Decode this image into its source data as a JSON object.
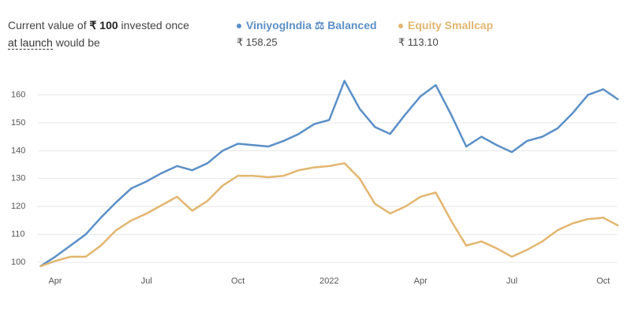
{
  "header": {
    "intro": "Current value of",
    "amount": "₹ 100",
    "rest": "invested once",
    "link": "at launch",
    "tail": "would be"
  },
  "chart_data": {
    "type": "line",
    "categories": [
      null,
      "Apr",
      null,
      null,
      null,
      null,
      null,
      "Jul",
      null,
      null,
      null,
      null,
      null,
      "Oct",
      null,
      null,
      null,
      null,
      null,
      "2022",
      null,
      null,
      null,
      null,
      null,
      "Apr",
      null,
      null,
      null,
      null,
      null,
      "Jul",
      null,
      null,
      null,
      null,
      null,
      "Oct",
      null
    ],
    "series": [
      {
        "name": "ViniyogIndia ⚖ Balanced",
        "color": "#5b8fc7",
        "values": [
          98.5,
          102,
          106,
          110,
          116,
          121.5,
          126.5,
          129,
          132,
          134.5,
          133,
          135.5,
          140,
          142.5,
          142,
          141.5,
          143.5,
          146,
          149.5,
          151,
          165,
          155,
          148.5,
          146,
          153,
          159.5,
          163.5,
          153,
          141.5,
          145,
          142,
          139.5,
          143.5,
          145,
          148,
          153.5,
          160,
          162,
          158.25
        ],
        "value_labels": [
          null,
          null,
          null,
          null,
          null,
          null,
          null,
          null,
          null,
          null,
          null,
          null,
          null,
          null,
          null,
          null,
          null,
          null,
          null,
          null,
          null,
          null,
          null,
          null,
          null,
          null,
          null,
          null,
          null,
          null,
          null,
          null,
          null,
          null,
          null,
          null,
          null,
          null,
          "₹ 158.25"
        ]
      },
      {
        "name": "Equity Smallcap",
        "color": "#e2b66f",
        "values": [
          98.5,
          100.5,
          102,
          102,
          106,
          111.5,
          115,
          117.5,
          120.5,
          123.5,
          118.5,
          122,
          127.5,
          131,
          131,
          130.5,
          131,
          133,
          134,
          134.5,
          135.5,
          130,
          121,
          117.5,
          120,
          123.5,
          125,
          115,
          106,
          107.5,
          105,
          102,
          104.5,
          107.5,
          111.5,
          114,
          115.5,
          116,
          113.1
        ],
        "value_labels": [
          null,
          null,
          null,
          null,
          null,
          null,
          null,
          null,
          null,
          null,
          null,
          null,
          null,
          null,
          null,
          null,
          null,
          null,
          null,
          null,
          null,
          null,
          null,
          null,
          null,
          null,
          null,
          null,
          null,
          null,
          null,
          null,
          null,
          null,
          null,
          null,
          null,
          null,
          "₹ 113.10"
        ]
      }
    ],
    "ylim": [
      97.5,
      170
    ],
    "yticks": [
      100,
      110,
      120,
      130,
      140,
      150,
      160
    ],
    "grid": true
  }
}
